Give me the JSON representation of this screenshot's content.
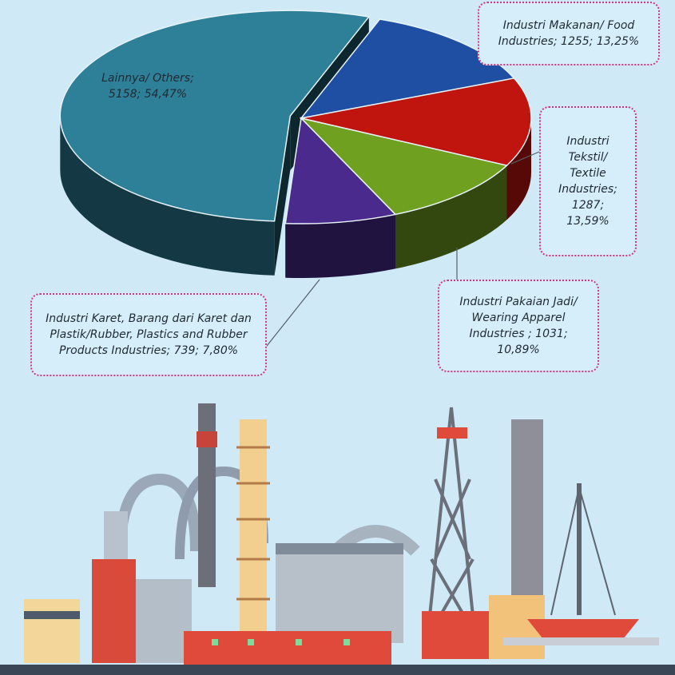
{
  "chart_data": {
    "type": "pie",
    "labels": [
      "Lainnya/ Others; 5158; 54,47%",
      "Industri Makanan/ Food Industries; 1255; 13,25%",
      "Industri Tekstil/ Textile Industries; 1287; 13,59%",
      "Industri Pakaian Jadi/ Wearing Apparel Industries ; 1031; 10,89%",
      "Industri Karet, Barang dari Karet dan Plastik/Rubber, Plastics and Rubber Products Industries; 739; 7,80%"
    ],
    "values": [
      5158,
      1255,
      1287,
      1031,
      739
    ],
    "colors": [
      "#2e7f98",
      "#1f4fa3",
      "#c0150f",
      "#6fa01f",
      "#4a2a8c"
    ]
  }
}
